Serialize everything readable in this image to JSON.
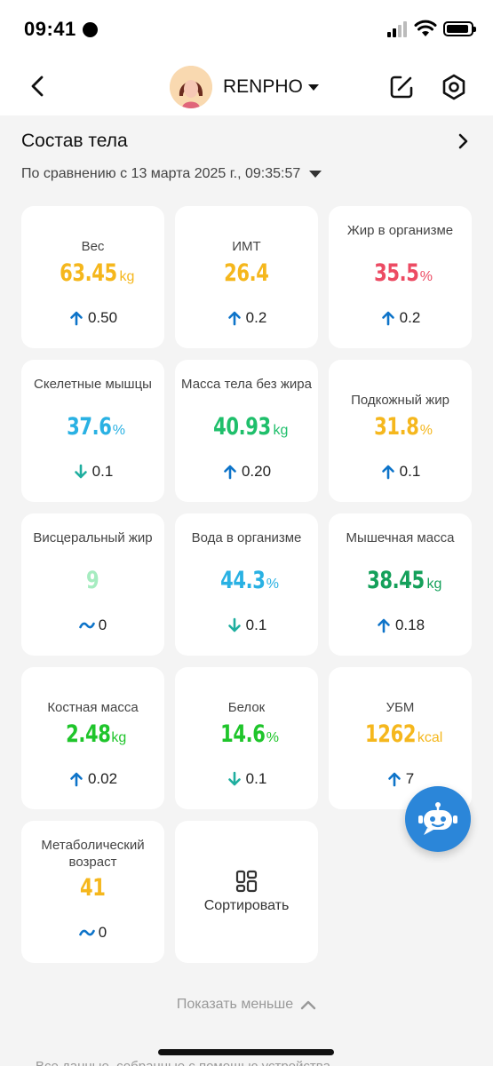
{
  "status_bar": {
    "time": "09:41"
  },
  "header": {
    "profile_name": "RENPHO"
  },
  "section": {
    "title": "Состав тела",
    "comparison": "По сравнению с 13 марта 2025 г., 09:35:57"
  },
  "metrics": [
    {
      "label": "Вес",
      "value": "63.45",
      "unit": "kg",
      "color": "#f5b71d",
      "change": "0.50",
      "trend": "up"
    },
    {
      "label": "ИМТ",
      "value": "26.4",
      "unit": "",
      "color": "#f5b71d",
      "change": "0.2",
      "trend": "up"
    },
    {
      "label": "Жир в организме",
      "value": "35.5",
      "unit": "%",
      "color": "#ec4b63",
      "change": "0.2",
      "trend": "up"
    },
    {
      "label": "Скелетные мышцы",
      "value": "37.6",
      "unit": "%",
      "color": "#29b1e3",
      "change": "0.1",
      "trend": "down"
    },
    {
      "label": "Масса тела без жира",
      "value": "40.93",
      "unit": "kg",
      "color": "#1fbf6b",
      "change": "0.20",
      "trend": "up"
    },
    {
      "label": "Подкожный жир",
      "value": "31.8",
      "unit": "%",
      "color": "#f5b71d",
      "change": "0.1",
      "trend": "up"
    },
    {
      "label": "Висцеральный жир",
      "value": "9",
      "unit": "",
      "color": "#a6ecc0",
      "change": "0",
      "trend": "flat"
    },
    {
      "label": "Вода в организме",
      "value": "44.3",
      "unit": "%",
      "color": "#29b1e3",
      "change": "0.1",
      "trend": "down"
    },
    {
      "label": "Мышечная масса",
      "value": "38.45",
      "unit": "kg",
      "color": "#14a05a",
      "change": "0.18",
      "trend": "up"
    },
    {
      "label": "Костная масса",
      "value": "2.48",
      "unit": "kg",
      "color": "#1fc52b",
      "change": "0.02",
      "trend": "up"
    },
    {
      "label": "Белок",
      "value": "14.6",
      "unit": "%",
      "color": "#1fc52b",
      "change": "0.1",
      "trend": "down"
    },
    {
      "label": "УБМ",
      "value": "1262",
      "unit": "kcal",
      "color": "#f5b71d",
      "change": "7",
      "trend": "up"
    },
    {
      "label": "Метаболический возраст",
      "value": "41",
      "unit": "",
      "color": "#f5b71d",
      "change": "0",
      "trend": "flat"
    }
  ],
  "sort_button": {
    "label": "Сортировать"
  },
  "show_less": "Показать меньше",
  "footnote": "Все данные, собранные с помощью устройства",
  "colors": {
    "trend_up": "#0e74c9",
    "trend_down": "#1fae9f",
    "trend_flat": "#0e74c9",
    "fab": "#2b86d9"
  }
}
